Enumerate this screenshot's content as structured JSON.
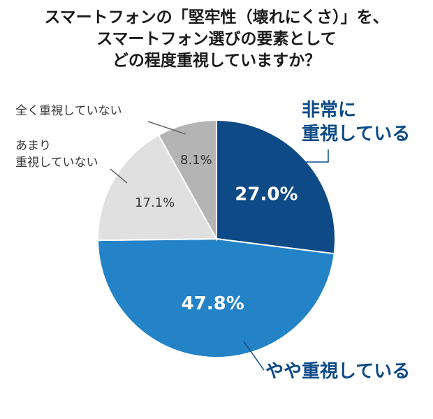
{
  "title_lines": [
    "スマートフォンの「堅牢性（壊れにくさ）」を、",
    "スマートフォン選びの要素として",
    "どの程度重視していますか？"
  ],
  "chart_data": {
    "type": "pie",
    "title": "スマートフォンの「堅牢性（壊れにくさ）」を、スマートフォン選びの要素としてどの程度重視していますか？",
    "slices": [
      {
        "label_lines": [
          "非常に",
          "重視している"
        ],
        "value": 27.0,
        "value_label": "27.0%",
        "color": "#0d4a86",
        "value_color": "#ffffff",
        "label_color": "#0d4a86",
        "label_bold": true
      },
      {
        "label_lines": [
          "やや重視している"
        ],
        "value": 47.8,
        "value_label": "47.8%",
        "color": "#2383c6",
        "value_color": "#ffffff",
        "label_color": "#0d4a86",
        "label_bold": true
      },
      {
        "label_lines": [
          "あまり",
          "重視していない"
        ],
        "value": 17.1,
        "value_label": "17.1%",
        "color": "#e0e0e0",
        "value_color": "#333333",
        "label_color": "#333333",
        "label_bold": false
      },
      {
        "label_lines": [
          "全く重視していない"
        ],
        "value": 8.1,
        "value_label": "8.1%",
        "color": "#b4b4b4",
        "value_color": "#333333",
        "label_color": "#333333",
        "label_bold": false
      }
    ],
    "start": "12 o'clock",
    "direction": "clockwise",
    "legend": "none"
  }
}
